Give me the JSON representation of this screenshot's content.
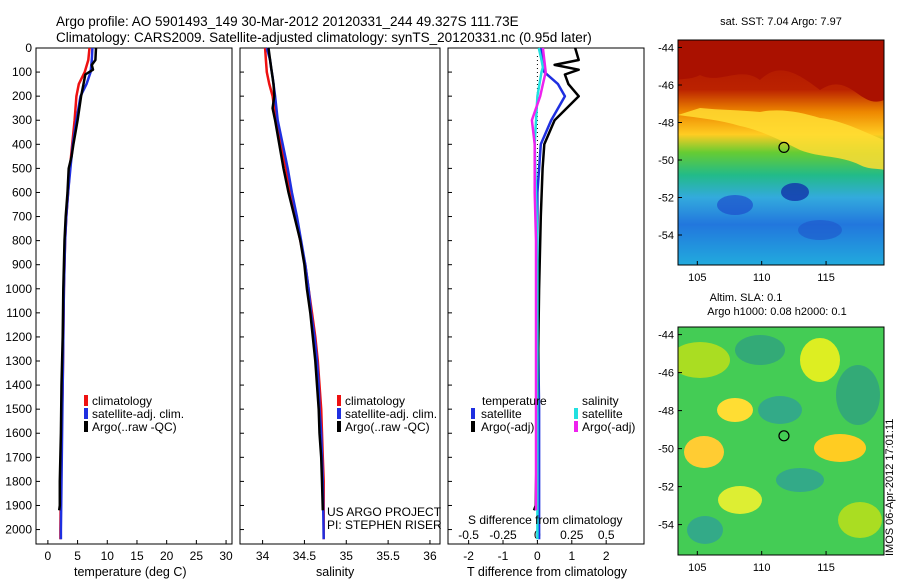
{
  "header": {
    "line1": "Argo profile: AO 5901493_149 30-Mar-2012 20120331_244 49.327S 111.73E",
    "line2": "Climatology: CARS2009. Satellite-adjusted climatology: synTS_20120331.nc (0.95d later)"
  },
  "colors": {
    "climatology": "#ee1111",
    "satellite": "#1f2fe0",
    "argo": "#000000",
    "sat_s": "#22e0e0",
    "argo_s": "#ee22ee"
  },
  "chart_data": [
    {
      "type": "line",
      "id": "temperature",
      "xlabel": "temperature (deg C)",
      "ylabel": "",
      "xlim": [
        -2,
        31
      ],
      "ylim": [
        2060,
        0
      ],
      "xticks": [
        0,
        5,
        10,
        15,
        20,
        25,
        30
      ],
      "yticks": [
        0,
        100,
        200,
        300,
        400,
        500,
        600,
        700,
        800,
        900,
        1000,
        1100,
        1200,
        1300,
        1400,
        1500,
        1600,
        1700,
        1800,
        1900,
        2000
      ],
      "legend": [
        "climatology",
        "satellite-adj. clim.",
        "Argo(..raw -QC)"
      ],
      "series": [
        {
          "name": "climatology",
          "points": [
            [
              7.0,
              0
            ],
            [
              6.8,
              50
            ],
            [
              6.2,
              100
            ],
            [
              5.2,
              150
            ],
            [
              4.8,
              200
            ],
            [
              4.5,
              300
            ],
            [
              4.1,
              400
            ],
            [
              3.7,
              500
            ],
            [
              3.4,
              600
            ],
            [
              3.1,
              700
            ],
            [
              2.9,
              800
            ],
            [
              2.8,
              900
            ],
            [
              2.7,
              1000
            ],
            [
              2.6,
              1200
            ],
            [
              2.5,
              1400
            ],
            [
              2.3,
              1600
            ],
            [
              2.2,
              1800
            ],
            [
              2.1,
              2000
            ],
            [
              2.1,
              2040
            ]
          ]
        },
        {
          "name": "satellite-adj. clim.",
          "points": [
            [
              7.5,
              0
            ],
            [
              7.4,
              50
            ],
            [
              7.2,
              100
            ],
            [
              6.5,
              150
            ],
            [
              5.5,
              200
            ],
            [
              4.8,
              300
            ],
            [
              4.2,
              400
            ],
            [
              3.8,
              500
            ],
            [
              3.4,
              600
            ],
            [
              3.1,
              700
            ],
            [
              2.9,
              800
            ],
            [
              2.8,
              900
            ],
            [
              2.7,
              1000
            ],
            [
              2.6,
              1200
            ],
            [
              2.5,
              1400
            ],
            [
              2.4,
              1600
            ],
            [
              2.3,
              1800
            ],
            [
              2.2,
              2000
            ],
            [
              2.2,
              2040
            ]
          ]
        },
        {
          "name": "Argo(..raw -QC)",
          "points": [
            [
              8.1,
              0
            ],
            [
              8.0,
              50
            ],
            [
              7.4,
              70
            ],
            [
              7.6,
              90
            ],
            [
              6.3,
              110
            ],
            [
              6.0,
              150
            ],
            [
              5.6,
              200
            ],
            [
              5.0,
              300
            ],
            [
              4.3,
              400
            ],
            [
              4.0,
              450
            ],
            [
              3.5,
              500
            ],
            [
              3.3,
              600
            ],
            [
              3.0,
              700
            ],
            [
              2.8,
              800
            ],
            [
              2.7,
              900
            ],
            [
              2.6,
              1000
            ],
            [
              2.5,
              1200
            ],
            [
              2.3,
              1400
            ],
            [
              2.2,
              1600
            ],
            [
              2.0,
              1800
            ],
            [
              2.0,
              1900
            ],
            [
              1.9,
              1920
            ]
          ]
        }
      ]
    },
    {
      "type": "line",
      "id": "salinity",
      "xlabel": "salinity",
      "ylabel": "",
      "xlim": [
        33.73,
        36.12
      ],
      "ylim": [
        2060,
        0
      ],
      "xticks": [
        34,
        34.5,
        35,
        35.5,
        36
      ],
      "yticks": [
        0,
        100,
        200,
        300,
        400,
        500,
        600,
        700,
        800,
        900,
        1000,
        1100,
        1200,
        1300,
        1400,
        1500,
        1600,
        1700,
        1800,
        1900,
        2000
      ],
      "legend": [
        "climatology",
        "satellite-adj. clim.",
        "Argo(..raw -QC)"
      ],
      "series": [
        {
          "name": "climatology",
          "points": [
            [
              34.03,
              0
            ],
            [
              34.04,
              50
            ],
            [
              34.05,
              100
            ],
            [
              34.08,
              150
            ],
            [
              34.12,
              200
            ],
            [
              34.16,
              300
            ],
            [
              34.22,
              400
            ],
            [
              34.28,
              500
            ],
            [
              34.33,
              600
            ],
            [
              34.39,
              700
            ],
            [
              34.45,
              800
            ],
            [
              34.51,
              900
            ],
            [
              34.55,
              1000
            ],
            [
              34.59,
              1100
            ],
            [
              34.63,
              1200
            ],
            [
              34.66,
              1300
            ],
            [
              34.68,
              1400
            ],
            [
              34.7,
              1500
            ],
            [
              34.71,
              1600
            ],
            [
              34.72,
              1700
            ],
            [
              34.73,
              1800
            ],
            [
              34.73,
              2040
            ]
          ]
        },
        {
          "name": "satellite-adj. clim.",
          "points": [
            [
              34.05,
              0
            ],
            [
              34.09,
              50
            ],
            [
              34.1,
              80
            ],
            [
              34.12,
              120
            ],
            [
              34.15,
              200
            ],
            [
              34.18,
              300
            ],
            [
              34.24,
              400
            ],
            [
              34.3,
              500
            ],
            [
              34.35,
              600
            ],
            [
              34.41,
              700
            ],
            [
              34.46,
              800
            ],
            [
              34.51,
              900
            ],
            [
              34.55,
              1000
            ],
            [
              34.58,
              1100
            ],
            [
              34.62,
              1200
            ],
            [
              34.65,
              1300
            ],
            [
              34.67,
              1400
            ],
            [
              34.68,
              1500
            ],
            [
              34.7,
              1600
            ],
            [
              34.71,
              1700
            ],
            [
              34.72,
              1800
            ],
            [
              34.73,
              2040
            ]
          ]
        },
        {
          "name": "Argo(..raw -QC)",
          "points": [
            [
              34.07,
              0
            ],
            [
              34.09,
              50
            ],
            [
              34.11,
              100
            ],
            [
              34.13,
              150
            ],
            [
              34.14,
              200
            ],
            [
              34.12,
              250
            ],
            [
              34.15,
              300
            ],
            [
              34.2,
              400
            ],
            [
              34.25,
              500
            ],
            [
              34.31,
              600
            ],
            [
              34.38,
              700
            ],
            [
              34.45,
              800
            ],
            [
              34.5,
              900
            ],
            [
              34.53,
              1000
            ],
            [
              34.57,
              1100
            ],
            [
              34.6,
              1200
            ],
            [
              34.63,
              1300
            ],
            [
              34.65,
              1400
            ],
            [
              34.67,
              1500
            ],
            [
              34.68,
              1600
            ],
            [
              34.7,
              1700
            ],
            [
              34.71,
              1800
            ],
            [
              34.72,
              1920
            ]
          ]
        }
      ]
    },
    {
      "type": "line",
      "id": "difference",
      "xlabel": "T difference from climatology",
      "xlabel_top": "S difference from climatology",
      "ylabel": "",
      "xlim": [
        -2.6,
        3.1
      ],
      "ylim": [
        2060,
        0
      ],
      "xticks": [
        -2,
        -1,
        0,
        1,
        2
      ],
      "xticks_s": [
        -0.5,
        -0.25,
        0,
        0.25,
        0.5
      ],
      "legend_titles": [
        "temperature",
        "salinity"
      ],
      "legend": [
        "satellite",
        "Argo(-adj)",
        "satellite",
        "Argo(-adj)"
      ],
      "series": [
        {
          "name": "T satellite",
          "points": [
            [
              0.1,
              0
            ],
            [
              0.15,
              50
            ],
            [
              0.2,
              100
            ],
            [
              0.6,
              150
            ],
            [
              0.8,
              200
            ],
            [
              0.4,
              300
            ],
            [
              0.1,
              400
            ],
            [
              0.05,
              500
            ],
            [
              0.0,
              600
            ],
            [
              0.0,
              700
            ],
            [
              0.0,
              1000
            ],
            [
              0.05,
              1500
            ],
            [
              0.05,
              2040
            ]
          ]
        },
        {
          "name": "T Argo(-adj)",
          "points": [
            [
              1.1,
              0
            ],
            [
              1.2,
              50
            ],
            [
              0.5,
              70
            ],
            [
              1.2,
              90
            ],
            [
              0.8,
              110
            ],
            [
              0.9,
              150
            ],
            [
              1.2,
              200
            ],
            [
              0.5,
              300
            ],
            [
              0.2,
              400
            ],
            [
              0.15,
              500
            ],
            [
              0.1,
              700
            ],
            [
              0.05,
              1000
            ],
            [
              0.0,
              1500
            ],
            [
              -0.05,
              1900
            ],
            [
              -0.1,
              1920
            ]
          ]
        },
        {
          "name": "S satellite",
          "points": [
            [
              0.01,
              0
            ],
            [
              0.03,
              50
            ],
            [
              0.04,
              80
            ],
            [
              0.03,
              100
            ],
            [
              0.0,
              200
            ],
            [
              -0.02,
              400
            ],
            [
              -0.01,
              600
            ],
            [
              0.0,
              800
            ],
            [
              0.0,
              1000
            ],
            [
              0.0,
              1500
            ],
            [
              0.0,
              2040
            ]
          ]
        },
        {
          "name": "S Argo(-adj)",
          "points": [
            [
              0.04,
              0
            ],
            [
              0.05,
              50
            ],
            [
              0.06,
              100
            ],
            [
              0.04,
              150
            ],
            [
              0.02,
              200
            ],
            [
              -0.04,
              300
            ],
            [
              -0.02,
              400
            ],
            [
              -0.02,
              600
            ],
            [
              -0.01,
              800
            ],
            [
              -0.01,
              1000
            ],
            [
              -0.01,
              1500
            ],
            [
              -0.01,
              1920
            ]
          ]
        }
      ]
    },
    {
      "type": "heatmap",
      "id": "sst-map",
      "title": "sat. SST: 7.04 Argo: 7.97",
      "xlim": [
        103.5,
        119.5
      ],
      "ylim": [
        -55.6,
        -43.6
      ],
      "xticks": [
        105,
        110,
        115
      ],
      "yticks": [
        -44,
        -46,
        -48,
        -50,
        -52,
        -54
      ],
      "marker": [
        111.73,
        -49.327
      ]
    },
    {
      "type": "heatmap",
      "id": "sla-map",
      "title": "Altim. SLA: 0.1",
      "subtitle": "Argo h1000: 0.08 h2000: 0.1",
      "xlim": [
        103.5,
        119.5
      ],
      "ylim": [
        -55.6,
        -43.6
      ],
      "xticks": [
        105,
        110,
        115
      ],
      "yticks": [
        -44,
        -46,
        -48,
        -50,
        -52,
        -54
      ],
      "marker": [
        111.73,
        -49.327
      ]
    }
  ],
  "annotations": {
    "project": "US ARGO PROJECT",
    "pi": "PI: STEPHEN RISER",
    "credit": "IMOS 06-Apr-2012 17:01:11"
  }
}
